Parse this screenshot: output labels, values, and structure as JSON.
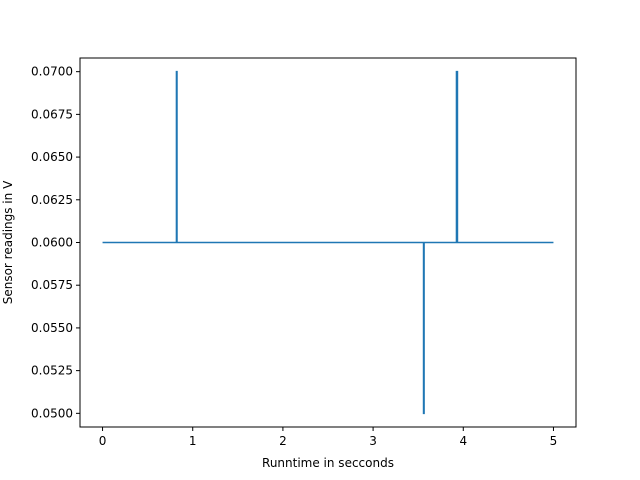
{
  "chart_data": {
    "type": "line",
    "title": "",
    "xlabel": "Runntime in secconds",
    "ylabel": "Sensor readings in V",
    "xlim": [
      -0.25,
      5.25
    ],
    "ylim": [
      0.0492,
      0.0708
    ],
    "x_ticks": [
      0,
      1,
      2,
      3,
      4,
      5
    ],
    "x_tick_labels": [
      "0",
      "1",
      "2",
      "3",
      "4",
      "5"
    ],
    "y_ticks": [
      0.05,
      0.0525,
      0.055,
      0.0575,
      0.06,
      0.0625,
      0.065,
      0.0675,
      0.07
    ],
    "y_tick_labels": [
      "0.0500",
      "0.0525",
      "0.0550",
      "0.0575",
      "0.0600",
      "0.0625",
      "0.0650",
      "0.0675",
      "0.0700"
    ],
    "grid": false,
    "series": [
      {
        "color": "#1f77b4",
        "x": [
          0,
          0.82,
          0.82,
          0.825,
          0.825,
          3.56,
          3.56,
          3.565,
          3.565,
          3.925,
          3.925,
          3.935,
          3.935,
          5
        ],
        "y": [
          0.06,
          0.06,
          0.07,
          0.07,
          0.06,
          0.06,
          0.05,
          0.05,
          0.06,
          0.06,
          0.07,
          0.07,
          0.06,
          0.06
        ]
      }
    ]
  }
}
